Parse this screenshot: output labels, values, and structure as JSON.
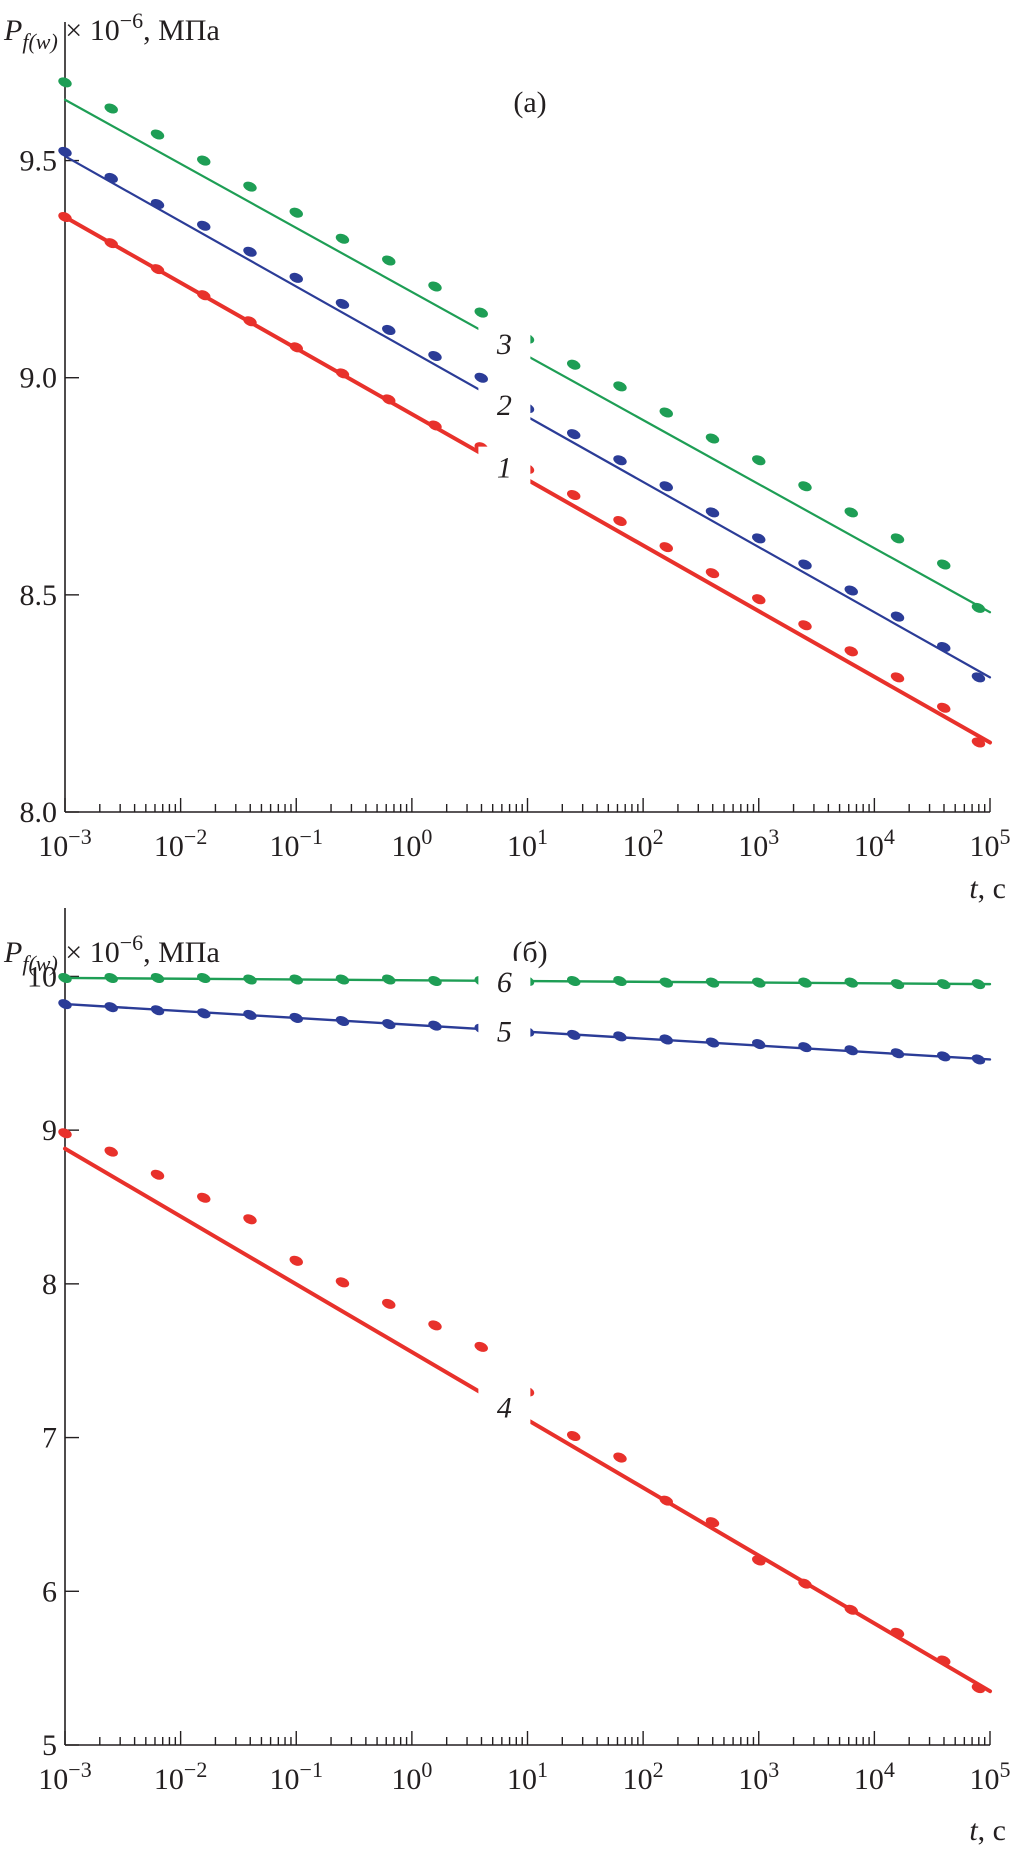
{
  "colors": {
    "red": "#e8312b",
    "blue": "#2b3c97",
    "green": "#1e9e55",
    "axis": "#231f20",
    "label_bg": "#ffffff"
  },
  "chart_data": [
    {
      "type": "line",
      "panel_label": "(a)",
      "xscale": "log",
      "xlim": [
        0.001,
        100000
      ],
      "ylim": [
        8.0,
        9.75
      ],
      "yticks": [
        8.0,
        8.5,
        9.0,
        9.5
      ],
      "ytick_labels": [
        "8.0",
        "8.5",
        "9.0",
        "9.5"
      ],
      "xticks": [
        0.001,
        0.01,
        0.1,
        1,
        10,
        100,
        1000,
        10000,
        100000
      ],
      "xtick_labels": [
        {
          "base": "10",
          "exp": "−3"
        },
        {
          "base": "10",
          "exp": "−2"
        },
        {
          "base": "10",
          "exp": "−1"
        },
        {
          "base": "10",
          "exp": "0"
        },
        {
          "base": "10",
          "exp": "1"
        },
        {
          "base": "10",
          "exp": "2"
        },
        {
          "base": "10",
          "exp": "3"
        },
        {
          "base": "10",
          "exp": "4"
        },
        {
          "base": "10",
          "exp": "5"
        }
      ],
      "ylabel": {
        "main": "P",
        "sub": "f(w)",
        "rest": " × 10",
        "exp": "−6",
        "unit": ", МПа"
      },
      "xlabel": {
        "var": "t",
        "unit": ", c"
      },
      "series": [
        {
          "name": "1",
          "color": "red",
          "fit": [
            [
              0.001,
              9.37
            ],
            [
              100000,
              8.16
            ]
          ],
          "label_at_log_t": 0.8,
          "line_width": 4,
          "points": [
            [
              0.001,
              9.37
            ],
            [
              0.00251,
              9.31
            ],
            [
              0.00631,
              9.25
            ],
            [
              0.01585,
              9.19
            ],
            [
              0.0398,
              9.13
            ],
            [
              0.1,
              9.07
            ],
            [
              0.251,
              9.01
            ],
            [
              0.631,
              8.95
            ],
            [
              1.585,
              8.89
            ],
            [
              3.98,
              8.84
            ],
            [
              10,
              8.79
            ],
            [
              25.1,
              8.73
            ],
            [
              63.1,
              8.67
            ],
            [
              158.5,
              8.61
            ],
            [
              398,
              8.55
            ],
            [
              1000,
              8.49
            ],
            [
              2512,
              8.43
            ],
            [
              6310,
              8.37
            ],
            [
              15849,
              8.31
            ],
            [
              39810,
              8.24
            ],
            [
              79430,
              8.16
            ]
          ]
        },
        {
          "name": "2",
          "color": "blue",
          "fit": [
            [
              0.001,
              9.51
            ],
            [
              100000,
              8.31
            ]
          ],
          "label_at_log_t": 0.8,
          "line_width": 2.2,
          "points": [
            [
              0.001,
              9.52
            ],
            [
              0.00251,
              9.46
            ],
            [
              0.00631,
              9.4
            ],
            [
              0.01585,
              9.35
            ],
            [
              0.0398,
              9.29
            ],
            [
              0.1,
              9.23
            ],
            [
              0.251,
              9.17
            ],
            [
              0.631,
              9.11
            ],
            [
              1.585,
              9.05
            ],
            [
              3.98,
              9.0
            ],
            [
              10,
              8.93
            ],
            [
              25.1,
              8.87
            ],
            [
              63.1,
              8.81
            ],
            [
              158.5,
              8.75
            ],
            [
              398,
              8.69
            ],
            [
              1000,
              8.63
            ],
            [
              2512,
              8.57
            ],
            [
              6310,
              8.51
            ],
            [
              15849,
              8.45
            ],
            [
              39810,
              8.38
            ],
            [
              79430,
              8.31
            ]
          ]
        },
        {
          "name": "3",
          "color": "green",
          "fit": [
            [
              0.001,
              9.64
            ],
            [
              100000,
              8.46
            ]
          ],
          "label_at_log_t": 0.8,
          "line_width": 2.2,
          "points": [
            [
              0.001,
              9.68
            ],
            [
              0.00251,
              9.62
            ],
            [
              0.00631,
              9.56
            ],
            [
              0.01585,
              9.5
            ],
            [
              0.0398,
              9.44
            ],
            [
              0.1,
              9.38
            ],
            [
              0.251,
              9.32
            ],
            [
              0.631,
              9.27
            ],
            [
              1.585,
              9.21
            ],
            [
              3.98,
              9.15
            ],
            [
              10,
              9.09
            ],
            [
              25.1,
              9.03
            ],
            [
              63.1,
              8.98
            ],
            [
              158.5,
              8.92
            ],
            [
              398,
              8.86
            ],
            [
              1000,
              8.81
            ],
            [
              2512,
              8.75
            ],
            [
              6310,
              8.69
            ],
            [
              15849,
              8.63
            ],
            [
              39810,
              8.57
            ],
            [
              79430,
              8.47
            ]
          ]
        }
      ]
    },
    {
      "type": "line",
      "panel_label": "(б)",
      "xscale": "log",
      "xlim": [
        0.001,
        100000
      ],
      "ylim": [
        5,
        10.25
      ],
      "yticks": [
        5,
        6,
        7,
        8,
        9,
        10
      ],
      "ytick_labels": [
        "5",
        "6",
        "7",
        "8",
        "9",
        "10"
      ],
      "xticks": [
        0.001,
        0.01,
        0.1,
        1,
        10,
        100,
        1000,
        10000,
        100000
      ],
      "xtick_labels": [
        {
          "base": "10",
          "exp": "−3"
        },
        {
          "base": "10",
          "exp": "−2"
        },
        {
          "base": "10",
          "exp": "−1"
        },
        {
          "base": "10",
          "exp": "0"
        },
        {
          "base": "10",
          "exp": "1"
        },
        {
          "base": "10",
          "exp": "2"
        },
        {
          "base": "10",
          "exp": "3"
        },
        {
          "base": "10",
          "exp": "4"
        },
        {
          "base": "10",
          "exp": "5"
        }
      ],
      "ylabel": {
        "main": "P",
        "sub": "f(w)",
        "rest": " × 10",
        "exp": "−6",
        "unit": ", МПа"
      },
      "xlabel": {
        "var": "t",
        "unit": ", c"
      },
      "series": [
        {
          "name": "4",
          "color": "red",
          "fit": [
            [
              0.001,
              8.88
            ],
            [
              100000,
              5.35
            ]
          ],
          "label_at_log_t": 0.8,
          "line_width": 4,
          "points": [
            [
              0.001,
              8.98
            ],
            [
              0.00251,
              8.86
            ],
            [
              0.00631,
              8.71
            ],
            [
              0.01585,
              8.56
            ],
            [
              0.0398,
              8.42
            ],
            [
              0.1,
              8.15
            ],
            [
              0.251,
              8.01
            ],
            [
              0.631,
              7.87
            ],
            [
              1.585,
              7.73
            ],
            [
              3.98,
              7.59
            ],
            [
              10,
              7.3
            ],
            [
              25.1,
              7.01
            ],
            [
              63.1,
              6.87
            ],
            [
              158.5,
              6.59
            ],
            [
              398,
              6.45
            ],
            [
              1000,
              6.2
            ],
            [
              2512,
              6.05
            ],
            [
              6310,
              5.88
            ],
            [
              15849,
              5.73
            ],
            [
              39810,
              5.55
            ],
            [
              79430,
              5.37
            ]
          ]
        },
        {
          "name": "5",
          "color": "blue",
          "fit": [
            [
              0.001,
              9.82
            ],
            [
              100000,
              9.46
            ]
          ],
          "label_at_log_t": 0.8,
          "line_width": 2.4,
          "points": [
            [
              0.001,
              9.82
            ],
            [
              0.00251,
              9.8
            ],
            [
              0.00631,
              9.78
            ],
            [
              0.01585,
              9.76
            ],
            [
              0.0398,
              9.75
            ],
            [
              0.1,
              9.73
            ],
            [
              0.251,
              9.71
            ],
            [
              0.631,
              9.69
            ],
            [
              1.585,
              9.68
            ],
            [
              3.98,
              9.66
            ],
            [
              10,
              9.64
            ],
            [
              25.1,
              9.62
            ],
            [
              63.1,
              9.61
            ],
            [
              158.5,
              9.59
            ],
            [
              398,
              9.57
            ],
            [
              1000,
              9.56
            ],
            [
              2512,
              9.54
            ],
            [
              6310,
              9.52
            ],
            [
              15849,
              9.5
            ],
            [
              39810,
              9.48
            ],
            [
              79430,
              9.46
            ]
          ]
        },
        {
          "name": "6",
          "color": "green",
          "fit": [
            [
              0.001,
              9.99
            ],
            [
              100000,
              9.95
            ]
          ],
          "label_at_log_t": 0.8,
          "line_width": 2.4,
          "points": [
            [
              0.001,
              9.99
            ],
            [
              0.00251,
              9.99
            ],
            [
              0.00631,
              9.99
            ],
            [
              0.01585,
              9.99
            ],
            [
              0.0398,
              9.98
            ],
            [
              0.1,
              9.98
            ],
            [
              0.251,
              9.98
            ],
            [
              0.631,
              9.98
            ],
            [
              1.585,
              9.97
            ],
            [
              3.98,
              9.97
            ],
            [
              10,
              9.97
            ],
            [
              25.1,
              9.97
            ],
            [
              63.1,
              9.97
            ],
            [
              158.5,
              9.96
            ],
            [
              398,
              9.96
            ],
            [
              1000,
              9.96
            ],
            [
              2512,
              9.96
            ],
            [
              6310,
              9.96
            ],
            [
              15849,
              9.95
            ],
            [
              39810,
              9.95
            ],
            [
              79430,
              9.95
            ]
          ]
        }
      ]
    }
  ]
}
